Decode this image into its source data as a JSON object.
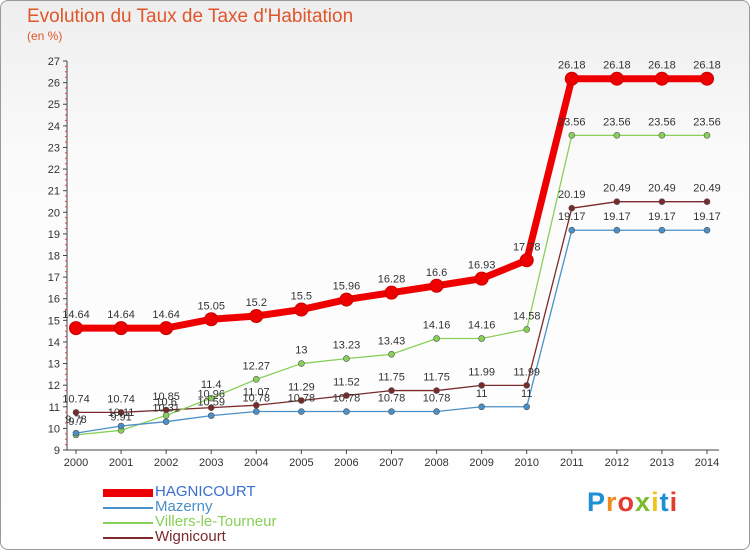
{
  "header": {
    "title": "Evolution du Taux de Taxe d'Habitation",
    "subtitle": "(en %)"
  },
  "logo": {
    "text": "Proxiti",
    "letters": [
      {
        "ch": "P",
        "color": "#1e8fd6"
      },
      {
        "ch": "r",
        "color": "#f08a1c"
      },
      {
        "ch": "o",
        "color": "#e33b2e"
      },
      {
        "ch": "x",
        "color": "#7dbb2a"
      },
      {
        "ch": "i",
        "color": "#f0c21c"
      },
      {
        "ch": "t",
        "color": "#1e8fd6"
      },
      {
        "ch": "i",
        "color": "#e33b2e"
      }
    ]
  },
  "chart_data": {
    "type": "line",
    "title": "Evolution du Taux de Taxe d'Habitation",
    "ylabel": "(en %)",
    "xlabel": "",
    "x": [
      2000,
      2001,
      2002,
      2003,
      2004,
      2005,
      2006,
      2007,
      2008,
      2009,
      2010,
      2011,
      2012,
      2013,
      2014
    ],
    "ylim": [
      9,
      27
    ],
    "yticks": [
      9,
      10,
      11,
      12,
      13,
      14,
      15,
      16,
      17,
      18,
      19,
      20,
      21,
      22,
      23,
      24,
      25,
      26,
      27
    ],
    "grid": false,
    "legend": "bottom-left",
    "series": [
      {
        "name": "HAGNICOURT",
        "color": "#ee0000",
        "values": [
          14.64,
          14.64,
          14.64,
          15.05,
          15.2,
          15.5,
          15.96,
          16.28,
          16.6,
          16.93,
          17.78,
          26.18,
          26.18,
          26.18,
          26.18
        ],
        "labels": [
          "14.64",
          "14.64",
          "14.64",
          "15.05",
          "15.2",
          "15.5",
          "15.96",
          "16.28",
          "16.6",
          "16.93",
          "17.78",
          "26.18",
          "26.18",
          "26.18",
          "26.18"
        ]
      },
      {
        "name": "Mazerny",
        "color": "#4a90c8",
        "values": [
          9.78,
          10.11,
          10.31,
          10.59,
          10.78,
          10.78,
          10.78,
          10.78,
          10.78,
          11,
          11,
          19.17,
          19.17,
          19.17,
          19.17
        ],
        "labels": [
          "9.78",
          "10.11",
          "10.31",
          "10.59",
          "10.78",
          "10.78",
          "10.78",
          "10.78",
          "10.78",
          "11",
          "11",
          "19.17",
          "19.17",
          "19.17",
          "19.17"
        ]
      },
      {
        "name": "Villers-le-Tourneur",
        "color": "#88d058",
        "values": [
          9.7,
          9.91,
          10.6,
          11.4,
          12.27,
          13,
          13.23,
          13.43,
          14.16,
          14.16,
          14.58,
          23.56,
          23.56,
          23.56,
          23.56
        ],
        "labels": [
          "9.7",
          "9.91",
          "10.6",
          "11.4",
          "12.27",
          "13",
          "13.23",
          "13.43",
          "14.16",
          "14.16",
          "14.58",
          "23.56",
          "23.56",
          "23.56",
          "23.56"
        ]
      },
      {
        "name": "Wignicourt",
        "color": "#7a2a2a",
        "values": [
          10.74,
          10.74,
          10.85,
          10.96,
          11.07,
          11.29,
          11.52,
          11.75,
          11.75,
          11.99,
          11.99,
          20.19,
          20.49,
          20.49,
          20.49
        ],
        "labels": [
          "10.74",
          "10.74",
          "10.85",
          "10.96",
          "11.07",
          "11.29",
          "11.52",
          "11.75",
          "11.75",
          "11.99",
          "11.99",
          "20.19",
          "20.49",
          "20.49",
          "20.49"
        ]
      }
    ]
  }
}
